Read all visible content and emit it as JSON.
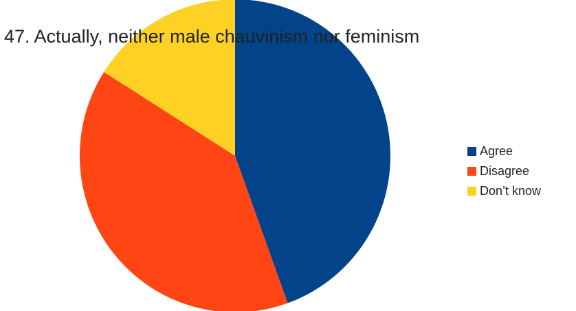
{
  "chart_data": {
    "type": "pie",
    "title": "47. Actually, neither male chauvinism nor feminism",
    "categories": [
      "Agree",
      "Disagree",
      "Don’t know"
    ],
    "values": [
      44.5,
      39.5,
      16.0
    ],
    "unit": "percent (estimated)",
    "colors": [
      "#02438A",
      "#FF4513",
      "#FED124"
    ],
    "start_angle_deg_clockwise_from_top": 0,
    "direction": "clockwise",
    "legend_position": "right"
  }
}
